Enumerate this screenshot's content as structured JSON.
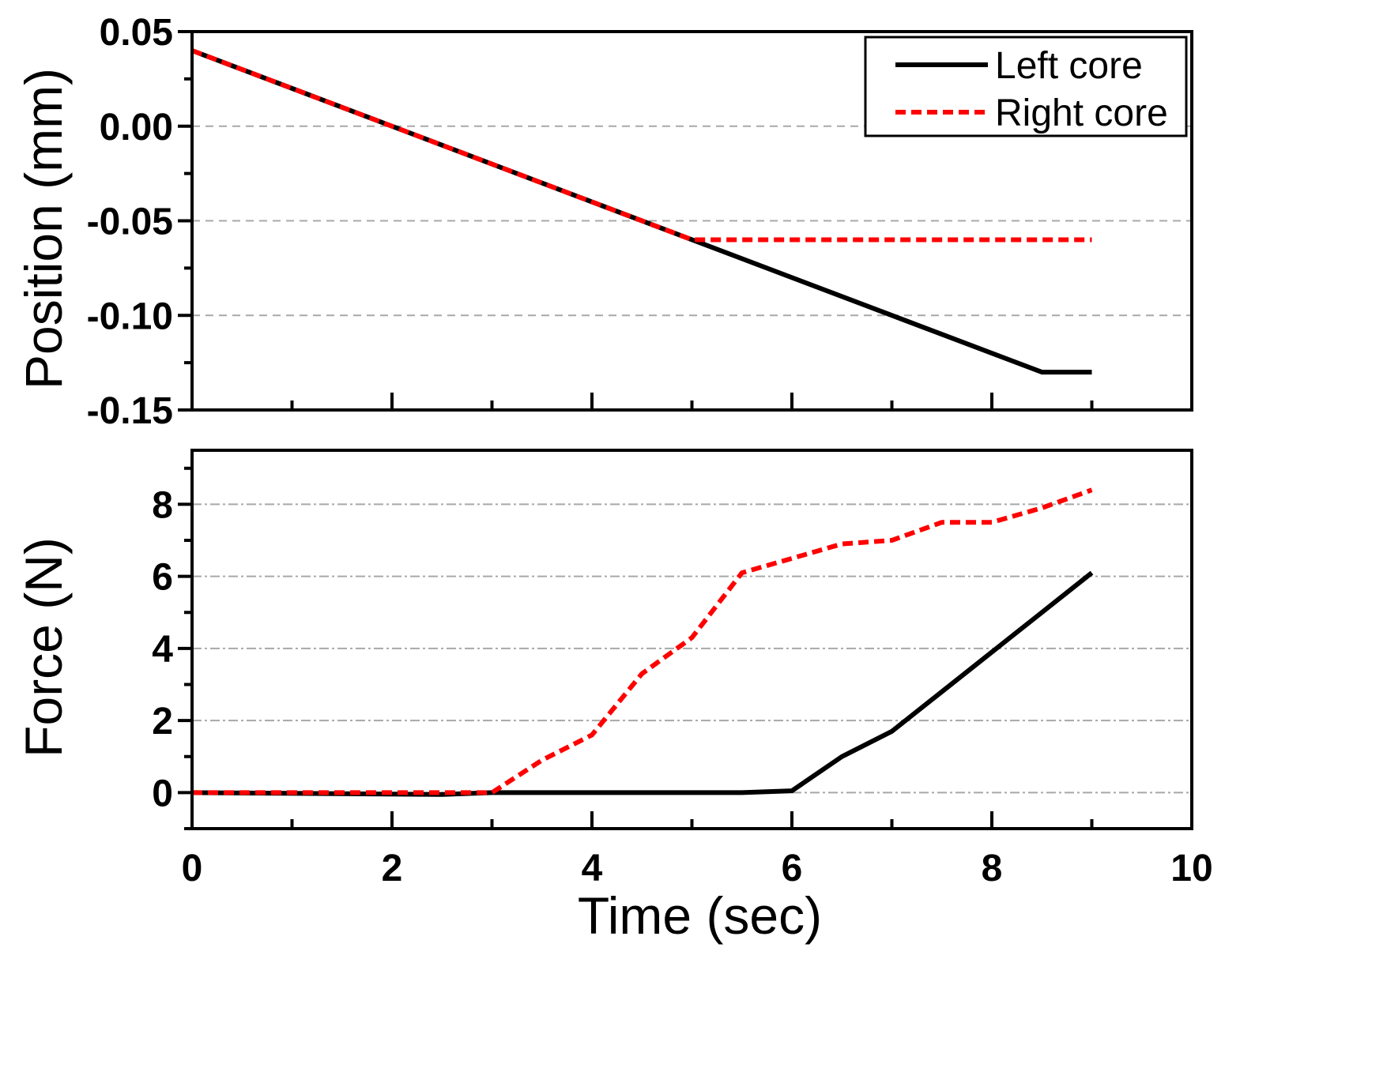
{
  "chart_data": [
    {
      "type": "line",
      "panel": "top",
      "ylabel": "Position (mm)",
      "xlabel": "",
      "xlim": [
        0,
        10
      ],
      "ylim": [
        -0.15,
        0.05
      ],
      "y_ticks": [
        -0.15,
        -0.1,
        -0.05,
        0.0,
        0.05
      ],
      "y_tick_labels": [
        "-0.15",
        "-0.10",
        "-0.05",
        "0.00",
        "0.05"
      ],
      "gridlines_y": [
        0.0,
        -0.05,
        -0.1
      ],
      "series": [
        {
          "name": "Left core",
          "style": "solid",
          "color": "#000000",
          "x": [
            0,
            8.5,
            9
          ],
          "y": [
            0.04,
            -0.13,
            -0.13
          ]
        },
        {
          "name": "Right core",
          "style": "dashed",
          "color": "#ff0000",
          "x": [
            0,
            5,
            9
          ],
          "y": [
            0.04,
            -0.06,
            -0.06
          ]
        }
      ],
      "legend": {
        "position": "top-right",
        "entries": [
          "Left core",
          "Right core"
        ]
      }
    },
    {
      "type": "line",
      "panel": "bottom",
      "ylabel": "Force (N)",
      "xlabel": "Time (sec)",
      "xlim": [
        0,
        10
      ],
      "ylim": [
        -1,
        9.5
      ],
      "x_ticks": [
        0,
        2,
        4,
        6,
        8,
        10
      ],
      "x_tick_labels": [
        "0",
        "2",
        "4",
        "6",
        "8",
        "10"
      ],
      "y_ticks": [
        0,
        2,
        4,
        6,
        8
      ],
      "y_tick_labels": [
        "0",
        "2",
        "4",
        "6",
        "8"
      ],
      "gridlines_y": [
        0,
        2,
        4,
        6,
        8
      ],
      "series": [
        {
          "name": "Left core",
          "style": "solid",
          "color": "#000000",
          "x": [
            0,
            2.5,
            3,
            5.5,
            6,
            6.5,
            7,
            7.5,
            8,
            8.5,
            9
          ],
          "y": [
            0,
            -0.05,
            0,
            0,
            0.05,
            1.0,
            1.7,
            2.8,
            3.9,
            5.0,
            6.1
          ]
        },
        {
          "name": "Right core",
          "style": "dashed",
          "color": "#ff0000",
          "x": [
            0,
            2.5,
            3,
            3.5,
            4,
            4.5,
            5,
            5.5,
            6,
            6.5,
            7,
            7.5,
            8,
            8.5,
            9
          ],
          "y": [
            0,
            0,
            0,
            0.9,
            1.6,
            3.3,
            4.3,
            6.1,
            6.5,
            6.9,
            7.0,
            7.5,
            7.5,
            7.9,
            8.4
          ]
        }
      ]
    }
  ]
}
